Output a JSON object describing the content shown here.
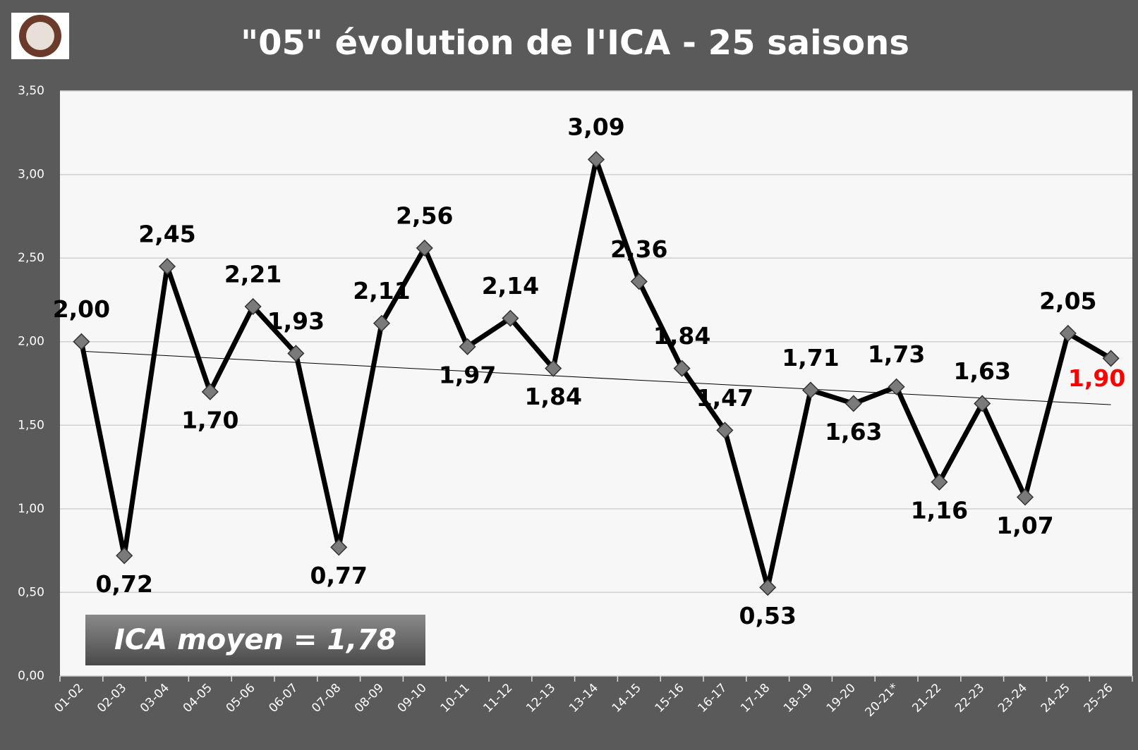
{
  "chart_data": {
    "type": "line",
    "title": "\"05\" évolution de l'ICA - 25 saisons",
    "categories": [
      "01-02",
      "02-03",
      "03-04",
      "04-05",
      "05-06",
      "06-07",
      "07-08",
      "08-09",
      "09-10",
      "10-11",
      "11-12",
      "12-13",
      "13-14",
      "14-15",
      "15-16",
      "16-17",
      "17-18",
      "18-19",
      "19-20",
      "20-21*",
      "21-22",
      "22-23",
      "23-24",
      "24-25",
      "25-26"
    ],
    "series": [
      {
        "name": "ICA",
        "color": "#000000",
        "marker_color": "#7a7a7a",
        "values": [
          2.0,
          0.72,
          2.45,
          1.7,
          2.21,
          1.93,
          0.77,
          2.11,
          2.56,
          1.97,
          2.14,
          1.84,
          3.09,
          2.36,
          1.84,
          1.47,
          0.53,
          1.71,
          1.63,
          1.73,
          1.16,
          1.63,
          1.07,
          2.05,
          1.9
        ],
        "value_labels": [
          "2,00",
          "0,72",
          "2,45",
          "1,70",
          "2,21",
          "1,93",
          "0,77",
          "2,11",
          "2,56",
          "1,97",
          "2,14",
          "1,84",
          "3,09",
          "2,36",
          "1,84",
          "1,47",
          "0,53",
          "1,71",
          "1,63",
          "1,73",
          "1,16",
          "1,63",
          "1,07",
          "2,05",
          "1,90"
        ]
      }
    ],
    "last_label_color": "#ff0000",
    "trendline": true,
    "annotation": "ICA moyen = 1,78",
    "ylim": [
      0,
      3.5
    ],
    "yticks": [
      {
        "value": 0,
        "label": "0,00"
      },
      {
        "value": 0.5,
        "label": "0,50"
      },
      {
        "value": 1,
        "label": "1,00"
      },
      {
        "value": 1.5,
        "label": "1,50"
      },
      {
        "value": 2,
        "label": "2,00"
      },
      {
        "value": 2.5,
        "label": "2,50"
      },
      {
        "value": 3,
        "label": "3,00"
      },
      {
        "value": 3.5,
        "label": "3,50"
      }
    ],
    "grid": true
  }
}
